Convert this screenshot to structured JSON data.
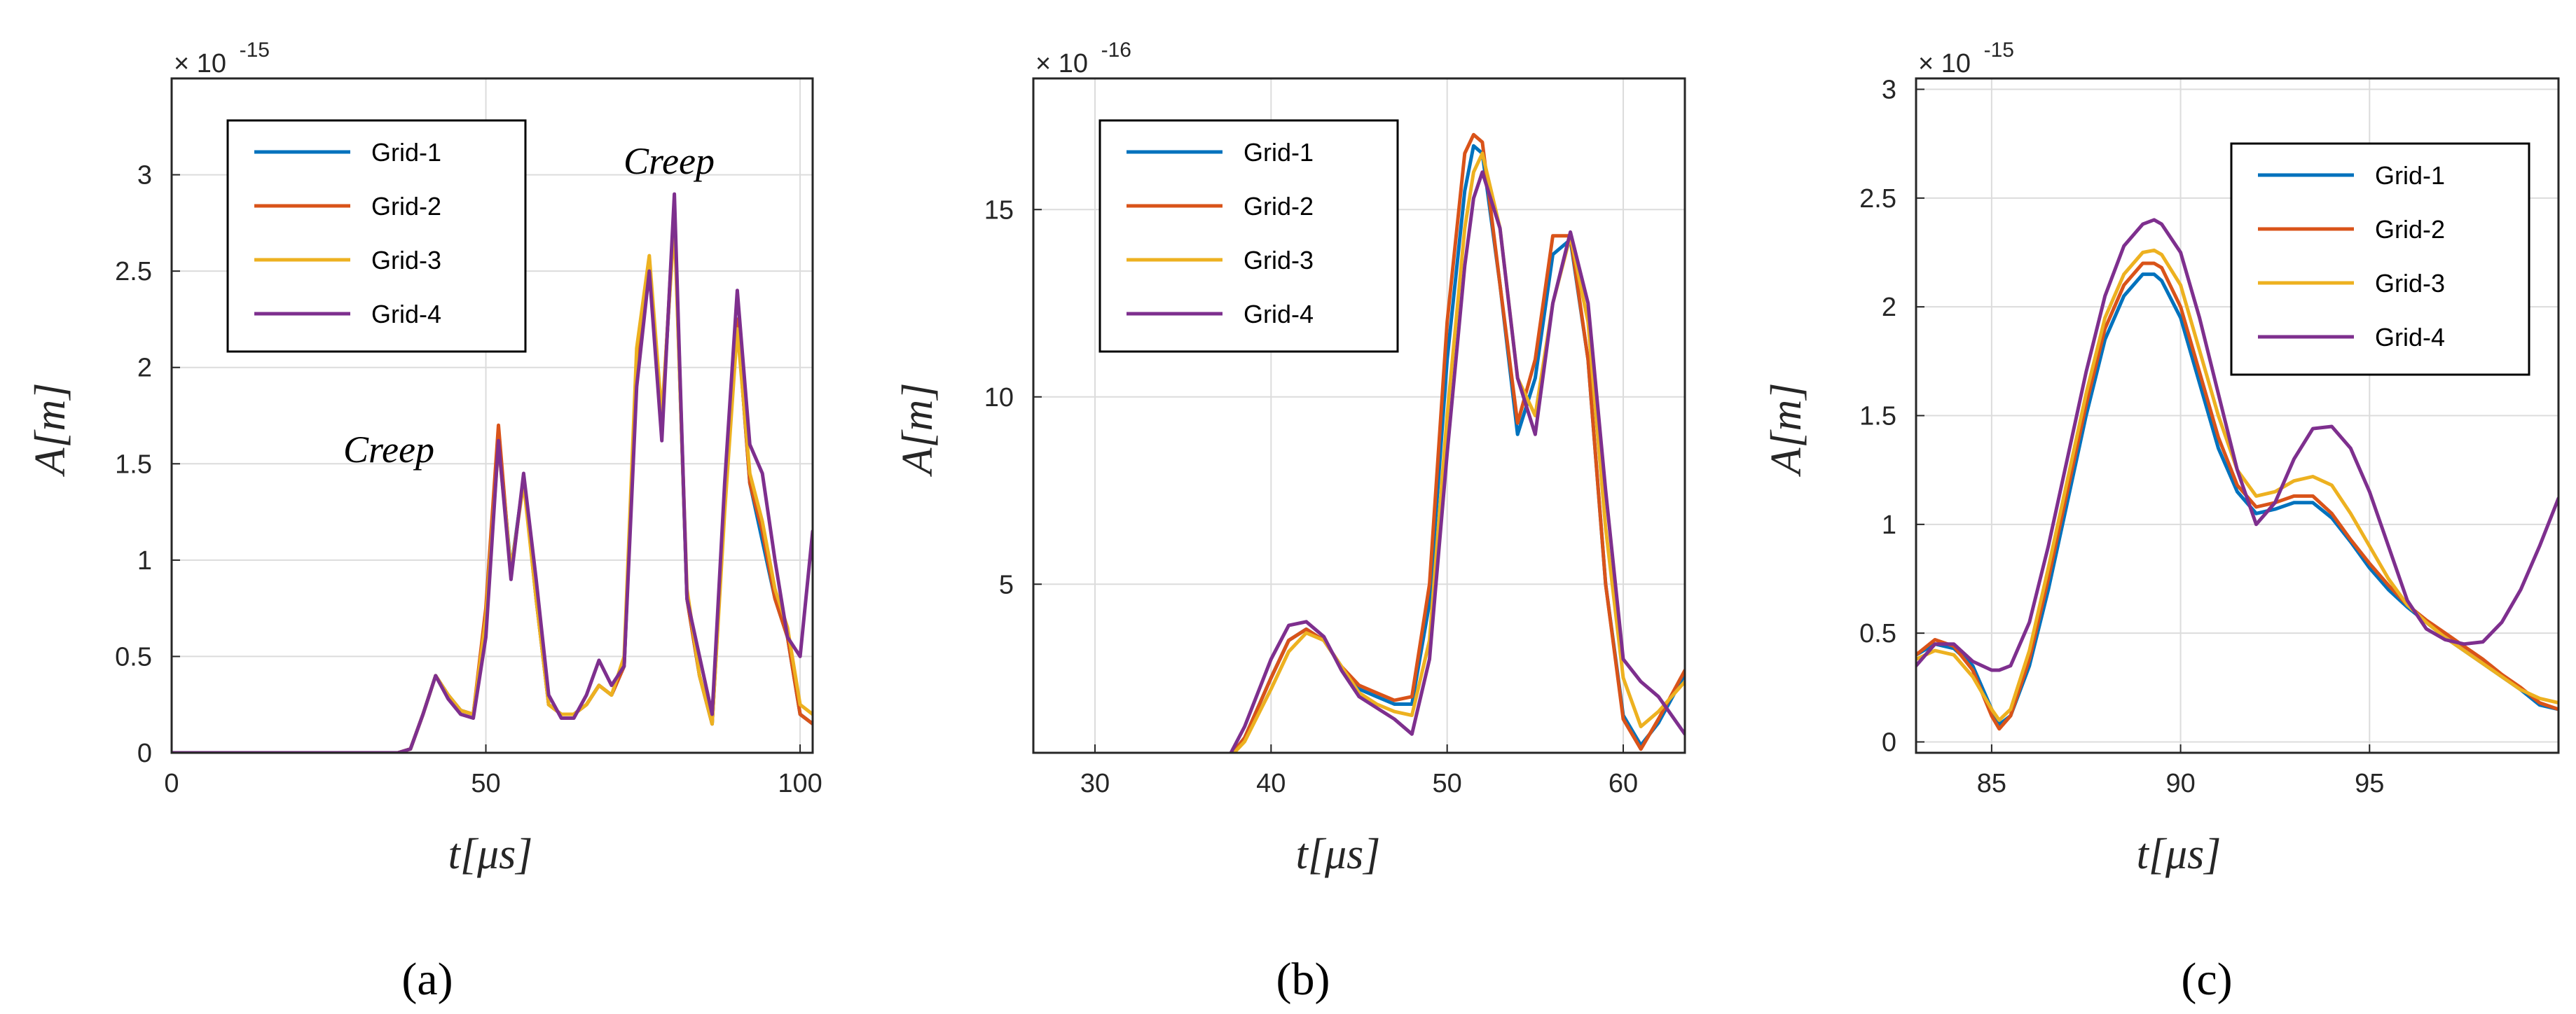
{
  "colors": {
    "grid_1": "#0072BD",
    "grid_2": "#D95319",
    "grid_3": "#EDB120",
    "grid_4": "#7E2F8E",
    "axis": "#262626",
    "gridline": "#DCDCDC"
  },
  "chart_data": [
    {
      "type": "line",
      "panel_label": "(a)",
      "xlabel": "t[μs]",
      "ylabel": "A[m]",
      "y_multiplier_base": "× 10",
      "y_multiplier_exp": "-15",
      "xlim": [
        0,
        102
      ],
      "ylim": [
        0,
        3.5
      ],
      "xticks": [
        0,
        50,
        100
      ],
      "xtick_labels": [
        "0",
        "50",
        "100"
      ],
      "yticks": [
        0,
        0.5,
        1,
        1.5,
        2,
        2.5,
        3
      ],
      "ytick_labels": [
        "0",
        "0.5",
        "1",
        "1.5",
        "2",
        "2.5",
        "3"
      ],
      "grid": true,
      "legend": {
        "position": "top-left",
        "entries": [
          "Grid-1",
          "Grid-2",
          "Grid-3",
          "Grid-4"
        ]
      },
      "annotations": [
        {
          "text": "Creep",
          "x": 30,
          "y": 1.55
        },
        {
          "text": "Creep",
          "x": 83,
          "y": 3.05
        }
      ],
      "series": [
        {
          "name": "Grid-1",
          "x": [
            0,
            36,
            38,
            40,
            42,
            44,
            46,
            48,
            50,
            52,
            54,
            56,
            58,
            60,
            62,
            64,
            66,
            68,
            70,
            72,
            74,
            76,
            78,
            80,
            82,
            84,
            86,
            88,
            90,
            92,
            94,
            96,
            98,
            100,
            102
          ],
          "y": [
            0,
            0,
            0.02,
            0.2,
            0.4,
            0.3,
            0.22,
            0.2,
            0.7,
            1.65,
            0.95,
            1.42,
            0.8,
            0.25,
            0.2,
            0.2,
            0.25,
            0.35,
            0.3,
            0.45,
            2.0,
            2.55,
            1.7,
            2.8,
            0.8,
            0.4,
            0.15,
            1.3,
            2.25,
            1.4,
            1.1,
            0.8,
            0.6,
            0.2,
            0.15
          ]
        },
        {
          "name": "Grid-2",
          "x": [
            0,
            36,
            38,
            40,
            42,
            44,
            46,
            48,
            50,
            52,
            54,
            56,
            58,
            60,
            62,
            64,
            66,
            68,
            70,
            72,
            74,
            76,
            78,
            80,
            82,
            84,
            86,
            88,
            90,
            92,
            94,
            96,
            98,
            100,
            102
          ],
          "y": [
            0,
            0,
            0.02,
            0.2,
            0.4,
            0.3,
            0.22,
            0.2,
            0.75,
            1.7,
            0.92,
            1.43,
            0.8,
            0.25,
            0.2,
            0.2,
            0.25,
            0.35,
            0.3,
            0.45,
            2.05,
            2.55,
            1.68,
            2.85,
            0.8,
            0.4,
            0.15,
            1.3,
            2.25,
            1.4,
            1.15,
            0.8,
            0.6,
            0.2,
            0.15
          ]
        },
        {
          "name": "Grid-3",
          "x": [
            0,
            36,
            38,
            40,
            42,
            44,
            46,
            48,
            50,
            52,
            54,
            56,
            58,
            60,
            62,
            64,
            66,
            68,
            70,
            72,
            74,
            76,
            78,
            80,
            82,
            84,
            86,
            88,
            90,
            92,
            94,
            96,
            98,
            100,
            102
          ],
          "y": [
            0,
            0,
            0.02,
            0.2,
            0.4,
            0.3,
            0.22,
            0.2,
            0.7,
            1.6,
            0.95,
            1.4,
            0.8,
            0.25,
            0.2,
            0.2,
            0.25,
            0.35,
            0.3,
            0.5,
            2.1,
            2.58,
            1.75,
            2.75,
            0.85,
            0.4,
            0.15,
            1.25,
            2.2,
            1.45,
            1.2,
            0.85,
            0.65,
            0.25,
            0.2
          ]
        },
        {
          "name": "Grid-4",
          "x": [
            0,
            36,
            38,
            40,
            42,
            44,
            46,
            48,
            50,
            52,
            54,
            56,
            58,
            60,
            62,
            64,
            66,
            68,
            70,
            72,
            74,
            76,
            78,
            80,
            82,
            84,
            86,
            88,
            90,
            92,
            94,
            96,
            98,
            100,
            102
          ],
          "y": [
            0,
            0,
            0.02,
            0.2,
            0.4,
            0.28,
            0.2,
            0.18,
            0.6,
            1.62,
            0.9,
            1.45,
            0.9,
            0.3,
            0.18,
            0.18,
            0.3,
            0.48,
            0.35,
            0.45,
            1.9,
            2.5,
            1.62,
            2.9,
            0.8,
            0.5,
            0.2,
            1.4,
            2.4,
            1.6,
            1.45,
            1.0,
            0.6,
            0.5,
            1.15
          ]
        }
      ]
    },
    {
      "type": "line",
      "panel_label": "(b)",
      "xlabel": "t[μs]",
      "ylabel": "A[m]",
      "y_multiplier_base": "× 10",
      "y_multiplier_exp": "-16",
      "xlim": [
        26.5,
        63.5
      ],
      "ylim": [
        0.5,
        18.5
      ],
      "xticks": [
        30,
        40,
        50,
        60
      ],
      "xtick_labels": [
        "30",
        "40",
        "50",
        "60"
      ],
      "yticks": [
        5,
        10,
        15
      ],
      "ytick_labels": [
        "5",
        "10",
        "15"
      ],
      "grid": true,
      "legend": {
        "position": "top-left",
        "entries": [
          "Grid-1",
          "Grid-2",
          "Grid-3",
          "Grid-4"
        ]
      },
      "series": [
        {
          "name": "Grid-1",
          "x": [
            37.5,
            38.5,
            40,
            41,
            42,
            43,
            44,
            45,
            46,
            47,
            48,
            49,
            50,
            51,
            51.5,
            52,
            53,
            54,
            55,
            56,
            57,
            58,
            59,
            60,
            61,
            62,
            63.5
          ],
          "y": [
            0.3,
            0.9,
            2.5,
            3.5,
            3.8,
            3.5,
            2.8,
            2.2,
            2.0,
            1.8,
            1.8,
            4.5,
            11,
            15.5,
            16.7,
            16.5,
            13,
            9.0,
            10.5,
            13.8,
            14.2,
            11,
            5,
            1.5,
            0.7,
            1.3,
            2.6
          ]
        },
        {
          "name": "Grid-2",
          "x": [
            37.5,
            38.5,
            40,
            41,
            42,
            43,
            44,
            45,
            46,
            47,
            48,
            49,
            50,
            51,
            51.5,
            52,
            53,
            54,
            55,
            56,
            57,
            58,
            59,
            60,
            61,
            62,
            63.5
          ],
          "y": [
            0.3,
            0.9,
            2.5,
            3.5,
            3.8,
            3.5,
            2.8,
            2.3,
            2.1,
            1.9,
            2.0,
            5.0,
            12,
            16.5,
            17.0,
            16.8,
            13,
            9.3,
            11,
            14.3,
            14.3,
            11,
            5,
            1.4,
            0.6,
            1.4,
            2.7
          ]
        },
        {
          "name": "Grid-3",
          "x": [
            37.5,
            38.5,
            40,
            41,
            42,
            43,
            44,
            45,
            46,
            47,
            48,
            49,
            50,
            51,
            51.5,
            52,
            53,
            54,
            55,
            56,
            57,
            58,
            59,
            60,
            61,
            62,
            63.5
          ],
          "y": [
            0.3,
            0.8,
            2.2,
            3.2,
            3.7,
            3.5,
            2.8,
            2.1,
            1.8,
            1.6,
            1.5,
            3.5,
            9.5,
            14.5,
            16.0,
            16.5,
            14.5,
            10.5,
            9.5,
            12.5,
            14.3,
            12,
            6.5,
            2.5,
            1.2,
            1.6,
            2.4
          ]
        },
        {
          "name": "Grid-4",
          "x": [
            37.5,
            38.5,
            40,
            41,
            42,
            43,
            44,
            45,
            46,
            47,
            48,
            49,
            50,
            51,
            51.5,
            52,
            53,
            54,
            55,
            56,
            57,
            58,
            59,
            60,
            61,
            62,
            63.5
          ],
          "y": [
            0.3,
            1.2,
            3.0,
            3.9,
            4.0,
            3.6,
            2.7,
            2.0,
            1.7,
            1.4,
            1.0,
            3.0,
            8.5,
            13.5,
            15.3,
            16.0,
            14.5,
            10.5,
            9.0,
            12.5,
            14.4,
            12.5,
            7.5,
            3.0,
            2.4,
            2.0,
            1.0
          ]
        }
      ]
    },
    {
      "type": "line",
      "panel_label": "(c)",
      "xlabel": "t[μs]",
      "ylabel": "A[m]",
      "y_multiplier_base": "× 10",
      "y_multiplier_exp": "-15",
      "xlim": [
        83,
        100
      ],
      "ylim": [
        -0.05,
        3.05
      ],
      "xticks": [
        85,
        90,
        95
      ],
      "xtick_labels": [
        "85",
        "90",
        "95"
      ],
      "yticks": [
        0,
        0.5,
        1,
        1.5,
        2,
        2.5,
        3
      ],
      "ytick_labels": [
        "0",
        "0.5",
        "1",
        "1.5",
        "2",
        "2.5",
        "3"
      ],
      "grid": true,
      "legend": {
        "position": "top-right",
        "entries": [
          "Grid-1",
          "Grid-2",
          "Grid-3",
          "Grid-4"
        ]
      },
      "series": [
        {
          "name": "Grid-1",
          "x": [
            83,
            83.5,
            84,
            84.5,
            85,
            85.2,
            85.5,
            86,
            86.5,
            87,
            87.5,
            88,
            88.5,
            89,
            89.3,
            89.5,
            90,
            90.5,
            91,
            91.5,
            92,
            92.5,
            93,
            93.5,
            94,
            94.5,
            95,
            95.5,
            96,
            96.5,
            97,
            97.5,
            98,
            98.5,
            99,
            99.5,
            100
          ],
          "y": [
            0.4,
            0.45,
            0.43,
            0.35,
            0.15,
            0.08,
            0.12,
            0.35,
            0.7,
            1.1,
            1.5,
            1.85,
            2.05,
            2.15,
            2.15,
            2.12,
            1.95,
            1.65,
            1.35,
            1.15,
            1.05,
            1.07,
            1.1,
            1.1,
            1.03,
            0.92,
            0.8,
            0.7,
            0.62,
            0.55,
            0.48,
            0.42,
            0.36,
            0.3,
            0.24,
            0.17,
            0.15
          ]
        },
        {
          "name": "Grid-2",
          "x": [
            83,
            83.5,
            84,
            84.5,
            85,
            85.2,
            85.5,
            86,
            86.5,
            87,
            87.5,
            88,
            88.5,
            89,
            89.3,
            89.5,
            90,
            90.5,
            91,
            91.5,
            92,
            92.5,
            93,
            93.5,
            94,
            94.5,
            95,
            95.5,
            96,
            96.5,
            97,
            97.5,
            98,
            98.5,
            99,
            99.5,
            100
          ],
          "y": [
            0.4,
            0.47,
            0.44,
            0.33,
            0.12,
            0.06,
            0.12,
            0.38,
            0.75,
            1.15,
            1.55,
            1.9,
            2.1,
            2.2,
            2.2,
            2.18,
            2.0,
            1.7,
            1.4,
            1.18,
            1.08,
            1.1,
            1.13,
            1.13,
            1.05,
            0.93,
            0.82,
            0.72,
            0.63,
            0.56,
            0.5,
            0.44,
            0.38,
            0.31,
            0.25,
            0.18,
            0.15
          ]
        },
        {
          "name": "Grid-3",
          "x": [
            83,
            83.5,
            84,
            84.5,
            85,
            85.2,
            85.5,
            86,
            86.5,
            87,
            87.5,
            88,
            88.5,
            89,
            89.3,
            89.5,
            90,
            90.5,
            91,
            91.5,
            92,
            92.5,
            93,
            93.5,
            94,
            94.5,
            95,
            95.5,
            96,
            96.5,
            97,
            97.5,
            98,
            98.5,
            99,
            99.5,
            100
          ],
          "y": [
            0.38,
            0.42,
            0.4,
            0.3,
            0.15,
            0.1,
            0.15,
            0.42,
            0.8,
            1.2,
            1.6,
            1.95,
            2.15,
            2.25,
            2.26,
            2.24,
            2.1,
            1.8,
            1.5,
            1.25,
            1.13,
            1.15,
            1.2,
            1.22,
            1.18,
            1.05,
            0.9,
            0.75,
            0.63,
            0.55,
            0.48,
            0.42,
            0.36,
            0.3,
            0.24,
            0.2,
            0.18
          ]
        },
        {
          "name": "Grid-4",
          "x": [
            83,
            83.5,
            84,
            84.5,
            85,
            85.2,
            85.5,
            86,
            86.5,
            87,
            87.5,
            88,
            88.5,
            89,
            89.3,
            89.5,
            90,
            90.5,
            91,
            91.5,
            92,
            92.5,
            93,
            93.5,
            94,
            94.5,
            95,
            95.5,
            96,
            96.5,
            97,
            97.5,
            98,
            98.5,
            99,
            99.5,
            100
          ],
          "y": [
            0.35,
            0.45,
            0.45,
            0.37,
            0.33,
            0.33,
            0.35,
            0.55,
            0.9,
            1.3,
            1.7,
            2.05,
            2.28,
            2.38,
            2.4,
            2.38,
            2.25,
            1.95,
            1.6,
            1.25,
            1.0,
            1.1,
            1.3,
            1.44,
            1.45,
            1.35,
            1.15,
            0.9,
            0.65,
            0.52,
            0.47,
            0.45,
            0.46,
            0.55,
            0.7,
            0.9,
            1.12
          ]
        }
      ]
    }
  ]
}
